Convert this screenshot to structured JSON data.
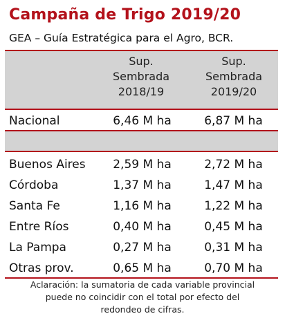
{
  "title": "Campaña de Trigo 2019/20",
  "subtitle": "GEA – Guía Estratégica para el Agro, BCR.",
  "columns": [
    {
      "line1": "Sup.",
      "line2": "Sembrada",
      "line3": "2018/19"
    },
    {
      "line1": "Sup.",
      "line2": "Sembrada",
      "line3": "2019/20"
    }
  ],
  "national": {
    "name": "Nacional",
    "v1": "6,46 M ha",
    "v2": "6,87 M ha"
  },
  "provinces": [
    {
      "name": "Buenos Aires",
      "v1": "2,59 M ha",
      "v2": "2,72 M ha"
    },
    {
      "name": "Córdoba",
      "v1": "1,37 M ha",
      "v2": "1,47 M ha"
    },
    {
      "name": "Santa Fe",
      "v1": "1,16 M ha",
      "v2": "1,22 M ha"
    },
    {
      "name": "Entre Ríos",
      "v1": "0,40 M ha",
      "v2": "0,45 M ha"
    },
    {
      "name": "La Pampa",
      "v1": "0,27 M ha",
      "v2": "0,31 M ha"
    },
    {
      "name": "Otras prov.",
      "v1": "0,65 M ha",
      "v2": "0,70 M ha"
    }
  ],
  "note": {
    "line1": "Aclaración: la sumatoria de cada variable provincial",
    "line2": "puede no coincidir con el total por efecto del",
    "line3": "redondeo de cifras."
  },
  "colors": {
    "accent": "#b3121b",
    "band": "#d3d3d3"
  }
}
